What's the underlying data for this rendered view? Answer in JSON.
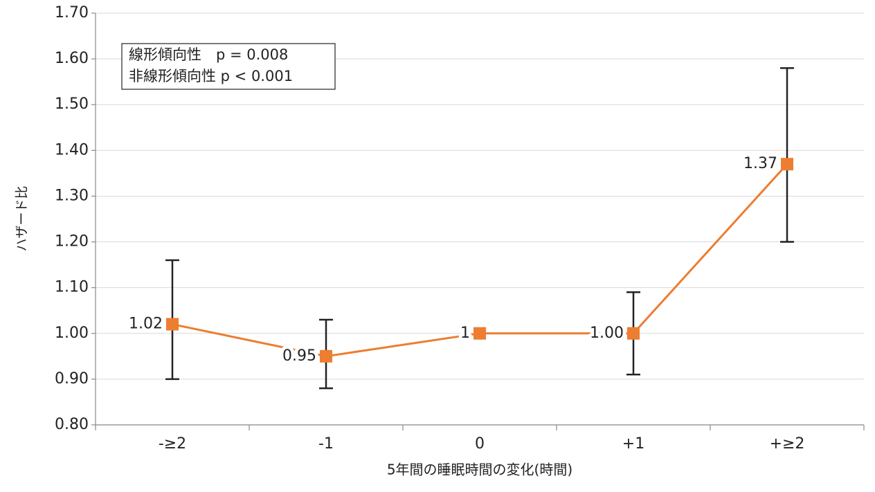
{
  "chart_data": {
    "type": "line",
    "x_label": "5年間の睡眠時間の変化(時間)",
    "y_label": "ハザード比",
    "categories": [
      "-≥2",
      "-1",
      "0",
      "+1",
      "+≥2"
    ],
    "series": [
      {
        "color": "#ed7d31",
        "error_color": "#222222",
        "values": [
          1.02,
          0.95,
          1,
          1.0,
          1.37
        ],
        "value_labels": [
          "1.02",
          "0.95",
          "1",
          "1.00",
          "1.37"
        ],
        "lower": [
          0.9,
          0.88,
          null,
          0.91,
          1.2
        ],
        "upper": [
          1.16,
          1.03,
          null,
          1.09,
          1.58
        ]
      }
    ],
    "ylim": [
      0.8,
      1.7
    ],
    "yticks": [
      {
        "value": 0.8,
        "label": "0.80"
      },
      {
        "value": 0.9,
        "label": "0.90"
      },
      {
        "value": 1.0,
        "label": "1.00"
      },
      {
        "value": 1.1,
        "label": "1.10"
      },
      {
        "value": 1.2,
        "label": "1.20"
      },
      {
        "value": 1.3,
        "label": "1.30"
      },
      {
        "value": 1.4,
        "label": "1.40"
      },
      {
        "value": 1.5,
        "label": "1.50"
      },
      {
        "value": 1.6,
        "label": "1.60"
      },
      {
        "value": 1.7,
        "label": "1.70"
      }
    ],
    "grid": true,
    "annotations": [
      "線形傾向性　p = 0.008",
      "非線形傾向性 p < 0.001"
    ]
  }
}
